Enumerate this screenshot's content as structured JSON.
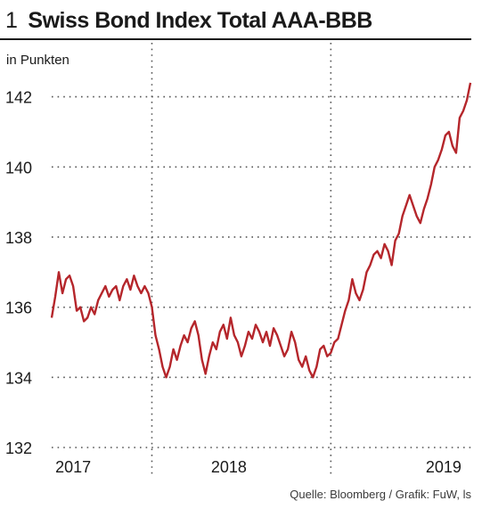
{
  "title_number": "1",
  "title": "Swiss Bond Index Total AAA-BBB",
  "unit_label": "in Punkten",
  "source": "Quelle: Bloomberg / Grafik: FuW, ls",
  "colors": {
    "line": "#b5262b",
    "grid": "#555555",
    "text": "#1a1a1a"
  },
  "chart_data": {
    "type": "line",
    "title": "Swiss Bond Index Total AAA-BBB",
    "ylabel": "in Punkten",
    "xlabel": "",
    "ylim": [
      132,
      142.6
    ],
    "xlim": [
      2017.0,
      2019.35
    ],
    "yticks": [
      132,
      134,
      136,
      138,
      140,
      142
    ],
    "ytick_labels": [
      "132",
      "134",
      "136",
      "138",
      "140",
      "142"
    ],
    "xtick_labels": [
      {
        "label": "2017",
        "at": 2017.12
      },
      {
        "label": "2018",
        "at": 2017.99
      },
      {
        "label": "2019",
        "at": 2019.19
      }
    ],
    "vgrid": [
      2017.56,
      2018.56
    ],
    "grid": "dotted",
    "series": [
      {
        "x": [
          2017.0,
          2017.02,
          2017.04,
          2017.06,
          2017.08,
          2017.1,
          2017.12,
          2017.14,
          2017.16,
          2017.18,
          2017.2,
          2017.22,
          2017.24,
          2017.26,
          2017.28,
          2017.3,
          2017.32,
          2017.34,
          2017.36,
          2017.38,
          2017.4,
          2017.42,
          2017.44,
          2017.46,
          2017.48,
          2017.5,
          2017.52,
          2017.54,
          2017.56,
          2017.58,
          2017.6,
          2017.62,
          2017.64,
          2017.66,
          2017.68,
          2017.7,
          2017.72,
          2017.74,
          2017.76,
          2017.78,
          2017.8,
          2017.82,
          2017.84,
          2017.86,
          2017.88,
          2017.9,
          2017.92,
          2017.94,
          2017.96,
          2017.98,
          2018.0,
          2018.02,
          2018.04,
          2018.06,
          2018.08,
          2018.1,
          2018.12,
          2018.14,
          2018.16,
          2018.18,
          2018.2,
          2018.22,
          2018.24,
          2018.26,
          2018.28,
          2018.3,
          2018.32,
          2018.34,
          2018.36,
          2018.38,
          2018.4,
          2018.42,
          2018.44,
          2018.46,
          2018.48,
          2018.5,
          2018.52,
          2018.54,
          2018.56,
          2018.58,
          2018.6,
          2018.62,
          2018.64,
          2018.66,
          2018.68,
          2018.7,
          2018.72,
          2018.74,
          2018.76,
          2018.78,
          2018.8,
          2018.82,
          2018.84,
          2018.86,
          2018.88,
          2018.9,
          2018.92,
          2018.94,
          2018.96,
          2018.98,
          2019.0,
          2019.02,
          2019.04,
          2019.06,
          2019.08,
          2019.1,
          2019.12,
          2019.14,
          2019.16,
          2019.18,
          2019.2,
          2019.22,
          2019.24,
          2019.26,
          2019.28,
          2019.3,
          2019.32,
          2019.34
        ],
        "y": [
          135.7,
          136.3,
          137.0,
          136.4,
          136.8,
          136.9,
          136.6,
          135.9,
          136.0,
          135.6,
          135.7,
          136.0,
          135.8,
          136.2,
          136.4,
          136.6,
          136.3,
          136.5,
          136.6,
          136.2,
          136.6,
          136.8,
          136.5,
          136.9,
          136.6,
          136.4,
          136.6,
          136.4,
          136.0,
          135.2,
          134.8,
          134.3,
          134.0,
          134.3,
          134.8,
          134.5,
          134.9,
          135.2,
          135.0,
          135.4,
          135.6,
          135.2,
          134.5,
          134.1,
          134.6,
          135.0,
          134.8,
          135.3,
          135.5,
          135.1,
          135.7,
          135.2,
          135.0,
          134.6,
          134.9,
          135.3,
          135.1,
          135.5,
          135.3,
          135.0,
          135.3,
          134.9,
          135.4,
          135.2,
          134.9,
          134.6,
          134.8,
          135.3,
          135.0,
          134.5,
          134.3,
          134.6,
          134.2,
          134.0,
          134.3,
          134.8,
          134.9,
          134.6,
          134.7,
          135.0,
          135.1,
          135.5,
          135.9,
          136.2,
          136.8,
          136.4,
          136.2,
          136.5,
          137.0,
          137.2,
          137.5,
          137.6,
          137.4,
          137.8,
          137.6,
          137.2,
          137.9,
          138.1,
          138.6,
          138.9,
          139.2,
          138.9,
          138.6,
          138.4,
          138.8,
          139.1,
          139.5,
          140.0,
          140.2,
          140.5,
          140.9,
          141.0,
          140.6,
          140.4,
          141.4,
          141.6,
          141.9,
          142.4
        ]
      }
    ]
  }
}
